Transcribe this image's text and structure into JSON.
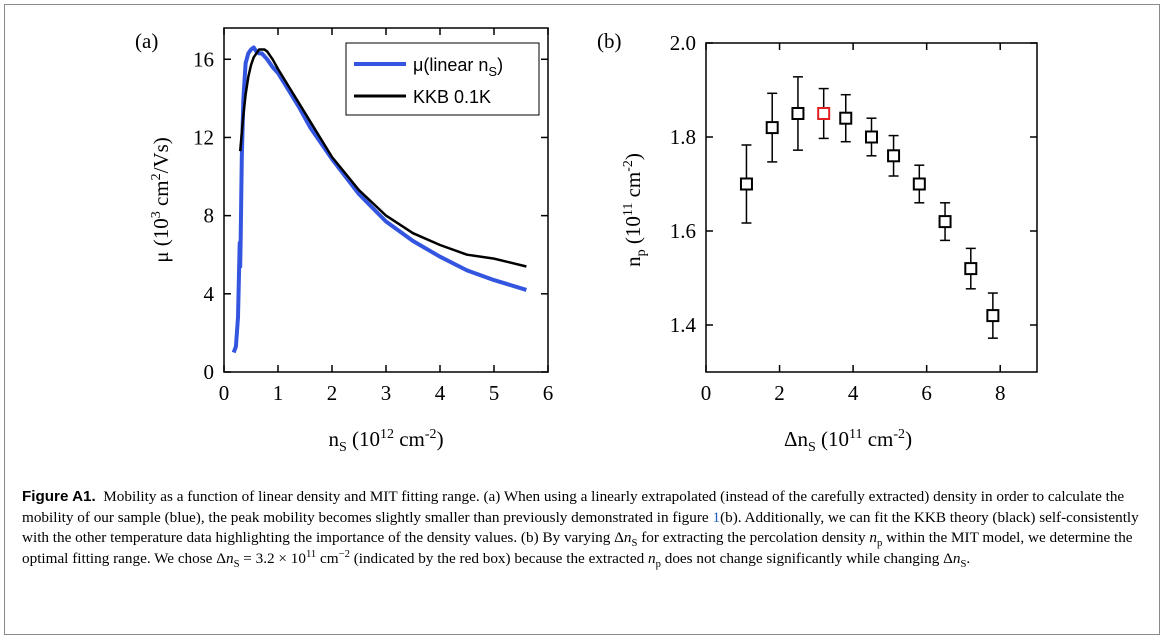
{
  "figure": {
    "panel_a_label": "(a)",
    "panel_b_label": "(b)",
    "caption": {
      "label": "Figure A1.",
      "text": "Mobility as a function of linear density and MIT fitting range. (a) When using a linearly extrapolated (instead of the carefully extracted) density in order to calculate the mobility of our sample (blue), the peak mobility becomes slightly smaller than previously demonstrated in figure 1(b). Additionally, we can fit the KKB theory (black) self-consistently with the other temperature data highlighting the importance of the density values. (b) By varying Δn_S for extracting the percolation density n_p within the MIT model, we determine the optimal fitting range. We chose Δn_S = 3.2 × 10^11 cm^−2 (indicated by the red box) because the extracted n_p does not change significantly while changing Δn_S.",
      "part1": "Mobility as a function of linear density and MIT fitting range. (a) When using a linearly extrapolated (instead of the carefully extracted) density in order to calculate the mobility of our sample (blue), the peak mobility becomes slightly smaller than previously demonstrated in figure ",
      "ref": "1",
      "part2": "(b). Additionally, we can fit the KKB theory (black) self-consistently with the other temperature data highlighting the importance of the density values. (b) By varying Δ",
      "n_s": "n",
      "sub_s": "S",
      "part3": " for extracting the percolation density ",
      "n_p": "n",
      "sub_p": "p",
      "part4": " within the MIT model, we determine the optimal fitting range. We chose Δ",
      "part5": " = 3.2 × 10",
      "exp11": "11",
      "part6": " cm",
      "exp_m2": "−2",
      "part7": " (indicated by the red box) because the extracted ",
      "part8": " does not change significantly while changing Δ",
      "part9": "."
    }
  },
  "colors": {
    "blue": "#3355e0",
    "black": "#000000",
    "red": "#e02020"
  },
  "chart_data": [
    {
      "type": "line",
      "panel": "(a)",
      "xlabel": "n_S (10^12 cm^-2)",
      "ylabel": "μ (10^3 cm^2/Vs)",
      "xlim": [
        0,
        6
      ],
      "ylim": [
        0,
        17.6
      ],
      "xticks": [
        0,
        1,
        2,
        3,
        4,
        5,
        6
      ],
      "yticks": [
        0,
        4,
        8,
        12,
        16
      ],
      "grid": false,
      "legend_position": "top-right",
      "series": [
        {
          "name": "μ(linear n S)",
          "color": "#3355e0",
          "x": [
            0.18,
            0.22,
            0.26,
            0.29,
            0.3,
            0.31,
            0.33,
            0.36,
            0.4,
            0.45,
            0.5,
            0.55,
            0.6,
            0.65,
            0.7,
            0.8,
            0.9,
            1.0,
            1.2,
            1.4,
            1.6,
            1.8,
            2.0,
            2.5,
            3.0,
            3.5,
            4.0,
            4.5,
            5.0,
            5.6
          ],
          "y": [
            1.0,
            1.3,
            2.8,
            6.6,
            5.4,
            6.9,
            11.0,
            14.0,
            15.8,
            16.3,
            16.5,
            16.6,
            16.4,
            16.3,
            16.3,
            16.0,
            15.6,
            15.3,
            14.4,
            13.5,
            12.5,
            11.7,
            10.9,
            9.1,
            7.7,
            6.7,
            5.9,
            5.2,
            4.7,
            4.2
          ]
        },
        {
          "name": "KKB 0.1K",
          "color": "#000000",
          "x": [
            0.3,
            0.35,
            0.4,
            0.45,
            0.5,
            0.55,
            0.6,
            0.65,
            0.7,
            0.75,
            0.8,
            0.9,
            1.0,
            1.2,
            1.4,
            1.6,
            1.8,
            2.0,
            2.5,
            3.0,
            3.5,
            4.0,
            4.5,
            5.0,
            5.6
          ],
          "y": [
            11.3,
            12.9,
            14.2,
            15.1,
            15.7,
            16.1,
            16.3,
            16.5,
            16.5,
            16.5,
            16.4,
            16.0,
            15.5,
            14.6,
            13.7,
            12.8,
            11.9,
            11.0,
            9.3,
            8.0,
            7.1,
            6.5,
            6.0,
            5.8,
            5.4
          ]
        }
      ],
      "legend": [
        "μ(linear n S)",
        "KKB 0.1K"
      ]
    },
    {
      "type": "scatter",
      "panel": "(b)",
      "xlabel": "Δn_S (10^11 cm^-2)",
      "ylabel": "n_p (10^11 cm^-2)",
      "xlim": [
        0,
        9
      ],
      "ylim": [
        1.3,
        2.0
      ],
      "xticks": [
        0,
        2,
        4,
        6,
        8
      ],
      "yticks": [
        1.4,
        1.6,
        1.8,
        2.0
      ],
      "grid": false,
      "series": [
        {
          "name": "",
          "x": [
            1.1,
            1.8,
            2.5,
            3.2,
            3.8,
            4.5,
            5.1,
            5.8,
            6.5,
            7.2,
            7.8
          ],
          "y": [
            1.7,
            1.82,
            1.85,
            1.85,
            1.84,
            1.8,
            1.76,
            1.7,
            1.62,
            1.52,
            1.42
          ],
          "err": [
            0.083,
            0.073,
            0.078,
            0.053,
            0.05,
            0.04,
            0.043,
            0.04,
            0.04,
            0.043,
            0.048
          ],
          "highlight_index": 3,
          "highlight_color": "#e02020"
        }
      ]
    }
  ]
}
